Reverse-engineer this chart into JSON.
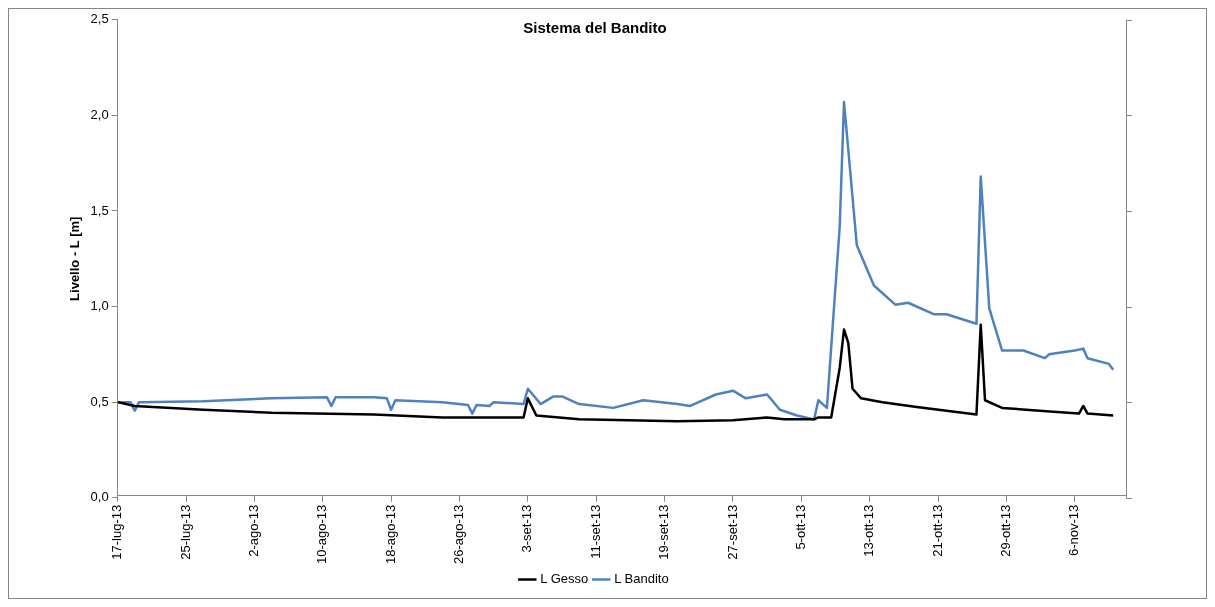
{
  "chart_data": {
    "type": "line",
    "title": "Sistema del Bandito",
    "ylabel": "Livello - L [m]",
    "xlim": [
      "--07-17",
      "--11-12"
    ],
    "xticks": [
      {
        "value": "--07-17",
        "label": "17-lug-13"
      },
      {
        "value": "--07-25",
        "label": "25-lug-13"
      },
      {
        "value": "--08-02",
        "label": "2-ago-13"
      },
      {
        "value": "--08-10",
        "label": "10-ago-13"
      },
      {
        "value": "--08-18",
        "label": "18-ago-13"
      },
      {
        "value": "--08-26",
        "label": "26-ago-13"
      },
      {
        "value": "--09-03",
        "label": "3-set-13"
      },
      {
        "value": "--09-11",
        "label": "11-set-13"
      },
      {
        "value": "--09-19",
        "label": "19-set-13"
      },
      {
        "value": "--09-27",
        "label": "27-set-13"
      },
      {
        "value": "--10-05",
        "label": "5-ott-13"
      },
      {
        "value": "--10-13",
        "label": "13-ott-13"
      },
      {
        "value": "--10-21",
        "label": "21-ott-13"
      },
      {
        "value": "--10-29",
        "label": "29-ott-13"
      },
      {
        "value": "--11-06",
        "label": "6-nov-13"
      }
    ],
    "ylim": [
      0,
      2.5
    ],
    "yticks": [
      {
        "value": 0,
        "label": "0,0"
      },
      {
        "value": 0.5,
        "label": "0,5"
      },
      {
        "value": 1,
        "label": "1,0"
      },
      {
        "value": 1.5,
        "label": "1,5"
      },
      {
        "value": 2,
        "label": "2,0"
      },
      {
        "value": 2.5,
        "label": "2,5"
      }
    ],
    "grid": false,
    "legend": "bottom",
    "marker": "none",
    "line_style": "solid",
    "series": [
      {
        "name": "L Gesso",
        "color": "#000000",
        "x": [
          "--07-17",
          "--07-19",
          "--07-27",
          "--08-04",
          "--08-16",
          "--08-24",
          "--09-02T12:00",
          "--09-03",
          "--09-04",
          "--09-09",
          "--09-20T12:00",
          "--09-27",
          "--10-01",
          "--10-03",
          "--10-06T12:00",
          "--10-07",
          "--10-08T12:00",
          "--10-09T12:00",
          "--10-10",
          "--10-10T12:00",
          "--10-11",
          "--10-12",
          "--10-14T12:00",
          "--10-18T12:00",
          "--10-25T12:00",
          "--10-26",
          "--10-26T12:00",
          "--10-28T12:00",
          "--11-03T12:00",
          "--11-06T12:00",
          "--11-07",
          "--11-07T12:00",
          "--11-10T12:00"
        ],
        "values": [
          0.5,
          0.48,
          0.46,
          0.445,
          0.435,
          0.42,
          0.42,
          0.52,
          0.43,
          0.41,
          0.4,
          0.405,
          0.42,
          0.41,
          0.41,
          0.42,
          0.42,
          0.68,
          0.88,
          0.81,
          0.57,
          0.52,
          0.5,
          0.475,
          0.435,
          0.905,
          0.51,
          0.47,
          0.45,
          0.44,
          0.48,
          0.44,
          0.43
        ]
      },
      {
        "name": "L Bandito",
        "color": "#4f81bd",
        "x": [
          "--07-17",
          "--07-18T12:00",
          "--07-19",
          "--07-19T12:00",
          "--07-27",
          "--08-04",
          "--08-10T12:00",
          "--08-11",
          "--08-11T12:00",
          "--08-16",
          "--08-17T12:00",
          "--08-18",
          "--08-18T12:00",
          "--08-24",
          "--08-27",
          "--08-27T12:00",
          "--08-28",
          "--08-29T12:00",
          "--08-30",
          "--09-02T12:00",
          "--09-03",
          "--09-04T12:00",
          "--09-06",
          "--09-07",
          "--09-09",
          "--09-13",
          "--09-16T12:00",
          "--09-20T12:00",
          "--09-22",
          "--09-25",
          "--09-27",
          "--09-28T12:00",
          "--10-01",
          "--10-02T12:00",
          "--10-04T12:00",
          "--10-06T12:00",
          "--10-07",
          "--10-08",
          "--10-09T12:00",
          "--10-10",
          "--10-11T12:00",
          "--10-13T12:00",
          "--10-16",
          "--10-17T12:00",
          "--10-20T12:00",
          "--10-22",
          "--10-25T12:00",
          "--10-26",
          "--10-27",
          "--10-28T12:00",
          "--10-31",
          "--11-02T12:00",
          "--11-03",
          "--11-06",
          "--11-07",
          "--11-07T12:00",
          "--11-10",
          "--11-10T12:00"
        ],
        "values": [
          0.5,
          0.5,
          0.455,
          0.5,
          0.505,
          0.52,
          0.525,
          0.48,
          0.525,
          0.525,
          0.52,
          0.46,
          0.51,
          0.5,
          0.485,
          0.44,
          0.485,
          0.48,
          0.5,
          0.49,
          0.57,
          0.49,
          0.53,
          0.53,
          0.49,
          0.47,
          0.51,
          0.49,
          0.48,
          0.54,
          0.56,
          0.52,
          0.54,
          0.46,
          0.43,
          0.41,
          0.51,
          0.47,
          1.42,
          2.07,
          1.32,
          1.11,
          1.01,
          1.02,
          0.96,
          0.96,
          0.91,
          1.68,
          0.99,
          0.77,
          0.77,
          0.73,
          0.75,
          0.77,
          0.78,
          0.73,
          0.7,
          0.67
        ]
      }
    ]
  }
}
